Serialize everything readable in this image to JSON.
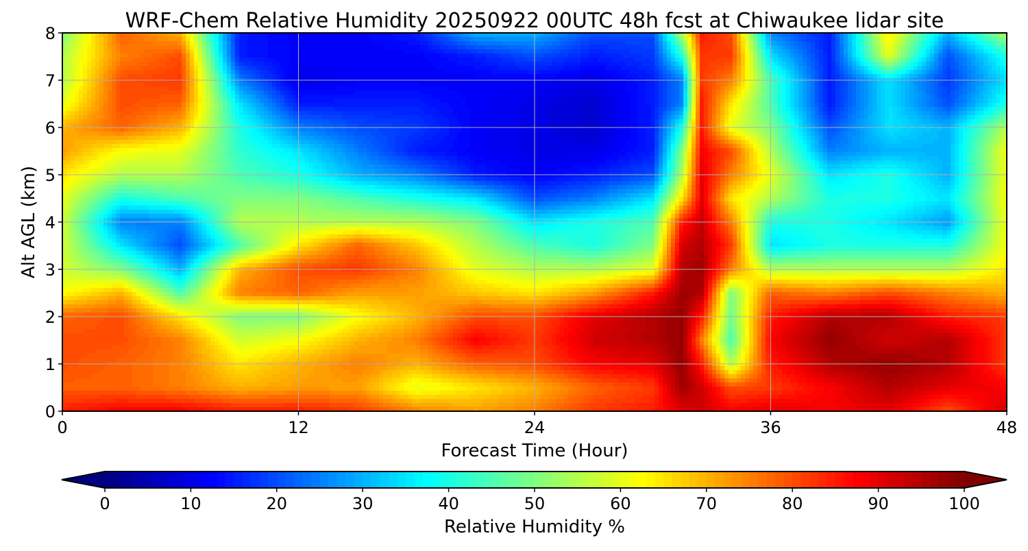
{
  "chart_data": {
    "type": "heatmap",
    "title": "WRF-Chem Relative Humidity 20250922 00UTC 48h fcst at Chiwaukee lidar site",
    "xlabel": "Forecast Time (Hour)",
    "ylabel": "Alt AGL (km)",
    "xlim": [
      0,
      48
    ],
    "ylim": [
      0,
      8
    ],
    "xticks": [
      "0",
      "12",
      "24",
      "36",
      "48"
    ],
    "xtick_values": [
      0,
      12,
      24,
      36,
      48
    ],
    "yticks": [
      "0",
      "1",
      "2",
      "3",
      "4",
      "5",
      "6",
      "7",
      "8"
    ],
    "ytick_values": [
      0,
      1,
      2,
      3,
      4,
      5,
      6,
      7,
      8
    ],
    "grid": true,
    "x": [
      0,
      3,
      6,
      9,
      12,
      15,
      18,
      21,
      24,
      27,
      30,
      31.5,
      32.5,
      34,
      36,
      39,
      42,
      45,
      48
    ],
    "y": [
      8,
      7.5,
      7,
      6.5,
      6,
      5.5,
      5,
      4.5,
      4,
      3.5,
      3,
      2.5,
      2,
      1.5,
      1,
      0.5,
      0
    ],
    "z_columns_by_x": [
      [
        50,
        55,
        55,
        60,
        70,
        72,
        65,
        60,
        58,
        58,
        58,
        62,
        78,
        80,
        80,
        78,
        85
      ],
      [
        78,
        75,
        80,
        80,
        78,
        62,
        55,
        40,
        25,
        35,
        50,
        70,
        80,
        80,
        78,
        78,
        88
      ],
      [
        70,
        80,
        82,
        78,
        70,
        60,
        55,
        45,
        25,
        20,
        30,
        45,
        65,
        75,
        75,
        75,
        88
      ],
      [
        15,
        15,
        25,
        35,
        40,
        42,
        45,
        50,
        55,
        45,
        70,
        75,
        50,
        58,
        65,
        70,
        85
      ],
      [
        12,
        12,
        10,
        15,
        25,
        35,
        40,
        50,
        55,
        65,
        80,
        78,
        50,
        62,
        70,
        72,
        85
      ],
      [
        12,
        12,
        12,
        15,
        20,
        25,
        30,
        45,
        55,
        78,
        82,
        72,
        62,
        70,
        75,
        72,
        82
      ],
      [
        15,
        12,
        12,
        15,
        18,
        15,
        25,
        40,
        55,
        68,
        75,
        72,
        70,
        75,
        70,
        60,
        75
      ],
      [
        30,
        15,
        12,
        12,
        12,
        12,
        15,
        35,
        50,
        55,
        60,
        68,
        80,
        88,
        78,
        65,
        72
      ],
      [
        30,
        20,
        12,
        10,
        10,
        10,
        12,
        20,
        35,
        45,
        55,
        65,
        80,
        82,
        80,
        70,
        75
      ],
      [
        20,
        15,
        10,
        8,
        8,
        10,
        15,
        25,
        40,
        40,
        55,
        72,
        90,
        92,
        88,
        78,
        82
      ],
      [
        20,
        18,
        15,
        15,
        15,
        15,
        20,
        35,
        45,
        50,
        60,
        85,
        95,
        95,
        90,
        82,
        85
      ],
      [
        55,
        40,
        25,
        25,
        40,
        50,
        55,
        65,
        85,
        92,
        95,
        97,
        98,
        98,
        98,
        97,
        90
      ],
      [
        85,
        82,
        82,
        85,
        85,
        88,
        90,
        90,
        93,
        95,
        97,
        95,
        85,
        75,
        85,
        92,
        92
      ],
      [
        80,
        82,
        75,
        65,
        60,
        80,
        75,
        65,
        75,
        82,
        75,
        50,
        48,
        45,
        55,
        80,
        88
      ],
      [
        25,
        35,
        45,
        45,
        50,
        55,
        60,
        55,
        40,
        35,
        55,
        78,
        85,
        88,
        85,
        82,
        90
      ],
      [
        15,
        15,
        15,
        15,
        20,
        25,
        35,
        40,
        40,
        40,
        55,
        75,
        95,
        98,
        95,
        88,
        88
      ],
      [
        65,
        60,
        35,
        35,
        35,
        30,
        40,
        40,
        35,
        40,
        55,
        80,
        95,
        92,
        98,
        95,
        90
      ],
      [
        30,
        20,
        18,
        20,
        30,
        30,
        30,
        35,
        28,
        40,
        55,
        75,
        85,
        95,
        95,
        90,
        80
      ],
      [
        55,
        40,
        35,
        40,
        55,
        62,
        62,
        62,
        62,
        62,
        65,
        70,
        82,
        82,
        82,
        88,
        92
      ]
    ],
    "colorbar": {
      "label": "Relative Humidity %",
      "range": [
        0,
        100
      ],
      "level_step": 1,
      "extend": "both",
      "colormap": "jet",
      "ticks": [
        "0",
        "10",
        "20",
        "30",
        "40",
        "50",
        "60",
        "70",
        "80",
        "90",
        "100"
      ],
      "tick_values": [
        0,
        10,
        20,
        30,
        40,
        50,
        60,
        70,
        80,
        90,
        100
      ]
    }
  }
}
